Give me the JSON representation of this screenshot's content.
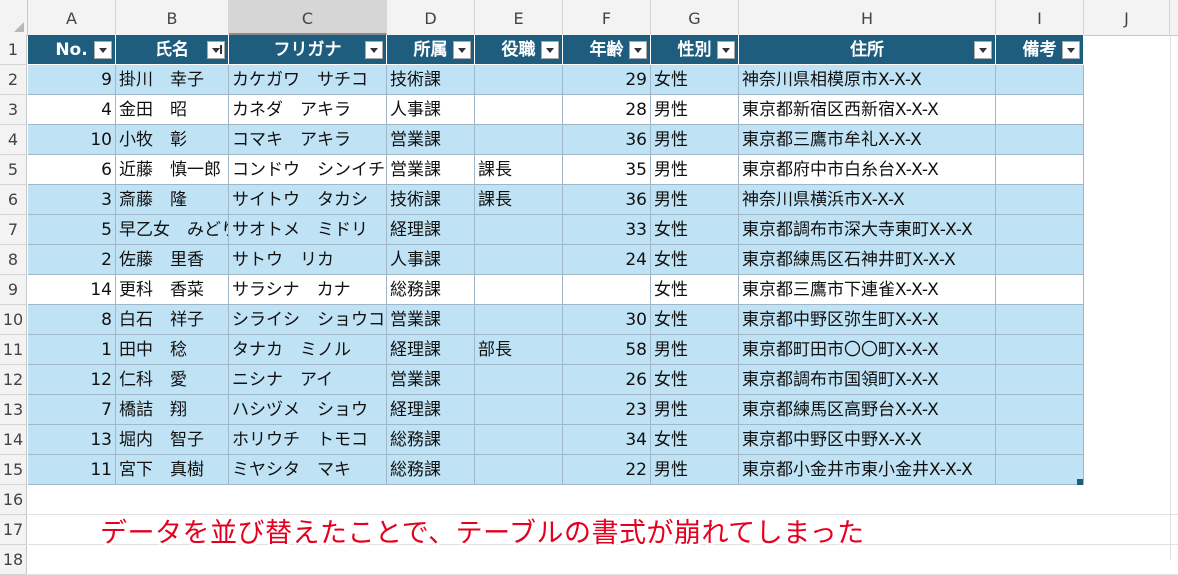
{
  "columns": [
    "A",
    "B",
    "C",
    "D",
    "E",
    "F",
    "G",
    "H",
    "I",
    "J"
  ],
  "selected_column": "C",
  "row_numbers": [
    "1",
    "2",
    "3",
    "4",
    "5",
    "6",
    "7",
    "8",
    "9",
    "10",
    "11",
    "12",
    "13",
    "14",
    "15",
    "16",
    "17",
    "18"
  ],
  "table": {
    "headers": [
      "No.",
      "氏名",
      "フリガナ",
      "所属",
      "役職",
      "年齢",
      "性別",
      "住所",
      "備考"
    ],
    "sorted_header": "氏名",
    "rows": [
      {
        "no": "9",
        "name": "掛川　幸子",
        "kana": "カケガワ　サチコ",
        "dept": "技術課",
        "title": "",
        "age": "29",
        "sex": "女性",
        "addr": "神奈川県相模原市X-X-X",
        "note": "",
        "band": "blue"
      },
      {
        "no": "4",
        "name": "金田　昭",
        "kana": "カネダ　アキラ",
        "dept": "人事課",
        "title": "",
        "age": "28",
        "sex": "男性",
        "addr": "東京都新宿区西新宿X-X-X",
        "note": "",
        "band": "white"
      },
      {
        "no": "10",
        "name": "小牧　彰",
        "kana": "コマキ　アキラ",
        "dept": "営業課",
        "title": "",
        "age": "36",
        "sex": "男性",
        "addr": "東京都三鷹市牟礼X-X-X",
        "note": "",
        "band": "blue"
      },
      {
        "no": "6",
        "name": "近藤　慎一郎",
        "kana": "コンドウ　シンイチロウ",
        "dept": "営業課",
        "title": "課長",
        "age": "35",
        "sex": "男性",
        "addr": "東京都府中市白糸台X-X-X",
        "note": "",
        "band": "white"
      },
      {
        "no": "3",
        "name": "斎藤　隆",
        "kana": "サイトウ　タカシ",
        "dept": "技術課",
        "title": "課長",
        "age": "36",
        "sex": "男性",
        "addr": "神奈川県横浜市X-X-X",
        "note": "",
        "band": "blue"
      },
      {
        "no": "5",
        "name": "早乙女　みどり",
        "kana": "サオトメ　ミドリ",
        "dept": "経理課",
        "title": "",
        "age": "33",
        "sex": "女性",
        "addr": "東京都調布市深大寺東町X-X-X",
        "note": "",
        "band": "blue"
      },
      {
        "no": "2",
        "name": "佐藤　里香",
        "kana": "サトウ　リカ",
        "dept": "人事課",
        "title": "",
        "age": "24",
        "sex": "女性",
        "addr": "東京都練馬区石神井町X-X-X",
        "note": "",
        "band": "blue"
      },
      {
        "no": "14",
        "name": "更科　香菜",
        "kana": "サラシナ　カナ",
        "dept": "総務課",
        "title": "",
        "age": "",
        "sex": "女性",
        "addr": "東京都三鷹市下連雀X-X-X",
        "note": "",
        "band": "white"
      },
      {
        "no": "8",
        "name": "白石　祥子",
        "kana": "シライシ　ショウコ",
        "dept": "営業課",
        "title": "",
        "age": "30",
        "sex": "女性",
        "addr": "東京都中野区弥生町X-X-X",
        "note": "",
        "band": "blue"
      },
      {
        "no": "1",
        "name": "田中　稔",
        "kana": "タナカ　ミノル",
        "dept": "経理課",
        "title": "部長",
        "age": "58",
        "sex": "男性",
        "addr": "東京都町田市〇〇町X-X-X",
        "note": "",
        "band": "blue"
      },
      {
        "no": "12",
        "name": "仁科　愛",
        "kana": "ニシナ　アイ",
        "dept": "営業課",
        "title": "",
        "age": "26",
        "sex": "女性",
        "addr": "東京都調布市国領町X-X-X",
        "note": "",
        "band": "blue"
      },
      {
        "no": "7",
        "name": "橋詰　翔",
        "kana": "ハシヅメ　ショウ",
        "dept": "経理課",
        "title": "",
        "age": "23",
        "sex": "男性",
        "addr": "東京都練馬区高野台X-X-X",
        "note": "",
        "band": "blue"
      },
      {
        "no": "13",
        "name": "堀内　智子",
        "kana": "ホリウチ　トモコ",
        "dept": "総務課",
        "title": "",
        "age": "34",
        "sex": "女性",
        "addr": "東京都中野区中野X-X-X",
        "note": "",
        "band": "blue"
      },
      {
        "no": "11",
        "name": "宮下　真樹",
        "kana": "ミヤシタ　マキ",
        "dept": "総務課",
        "title": "",
        "age": "22",
        "sex": "男性",
        "addr": "東京都小金井市東小金井X-X-X",
        "note": "",
        "band": "blue"
      }
    ]
  },
  "annotation": "データを並び替えたことで、テーブルの書式が崩れてしまった",
  "colors": {
    "header_bg": "#1f5d7f",
    "band_blue": "#bfe3f5",
    "annotation": "#e6001f"
  }
}
